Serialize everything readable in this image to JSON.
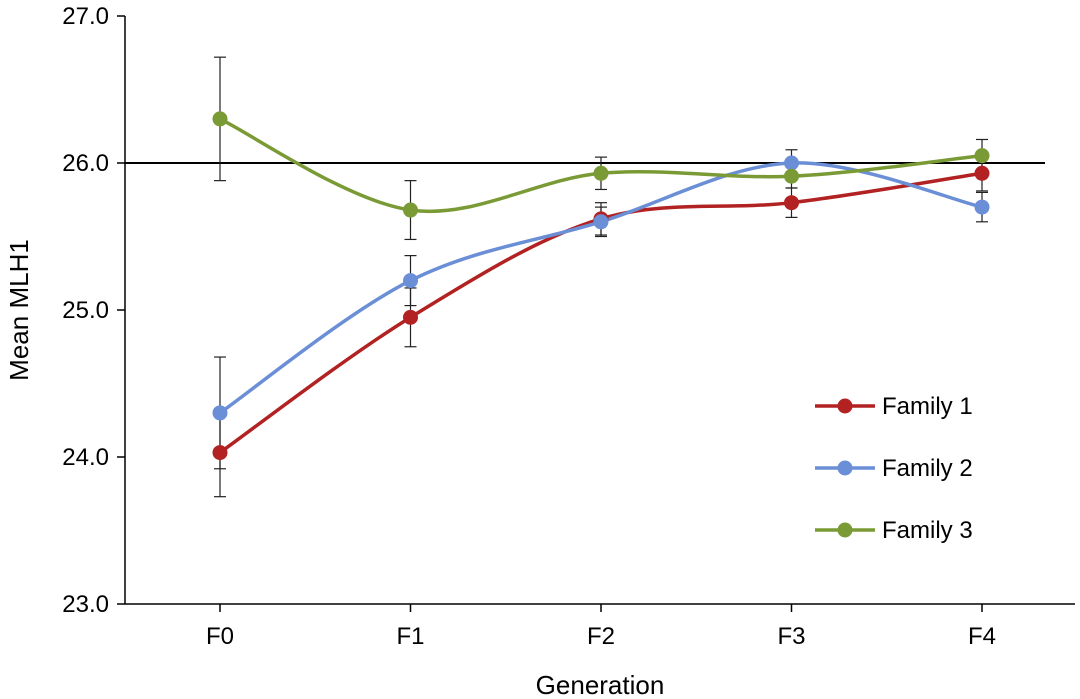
{
  "chart_data": {
    "type": "line",
    "xlabel": "Generation",
    "ylabel": "Mean MLH1",
    "categories": [
      "F0",
      "F1",
      "F2",
      "F3",
      "F4"
    ],
    "ylim": [
      23.0,
      27.0
    ],
    "yticks": [
      "23.0",
      "24.0",
      "25.0",
      "26.0",
      "27.0"
    ],
    "reference_line": 26.0,
    "grid": false,
    "legend_position": "right",
    "series": [
      {
        "name": "Family 1",
        "color": "#b22222",
        "values": [
          24.03,
          24.95,
          25.62,
          25.73,
          25.93
        ],
        "error": [
          0.3,
          0.2,
          0.11,
          0.1,
          0.12
        ]
      },
      {
        "name": "Family 2",
        "color": "#6b8fd6",
        "values": [
          24.3,
          25.2,
          25.6,
          26.0,
          25.7
        ],
        "error": [
          0.38,
          0.17,
          0.1,
          0.09,
          0.1
        ]
      },
      {
        "name": "Family 3",
        "color": "#7a9a35",
        "values": [
          26.3,
          25.68,
          25.93,
          25.91,
          26.05
        ],
        "error": [
          0.42,
          0.2,
          0.11,
          0.08,
          0.11
        ]
      }
    ]
  }
}
